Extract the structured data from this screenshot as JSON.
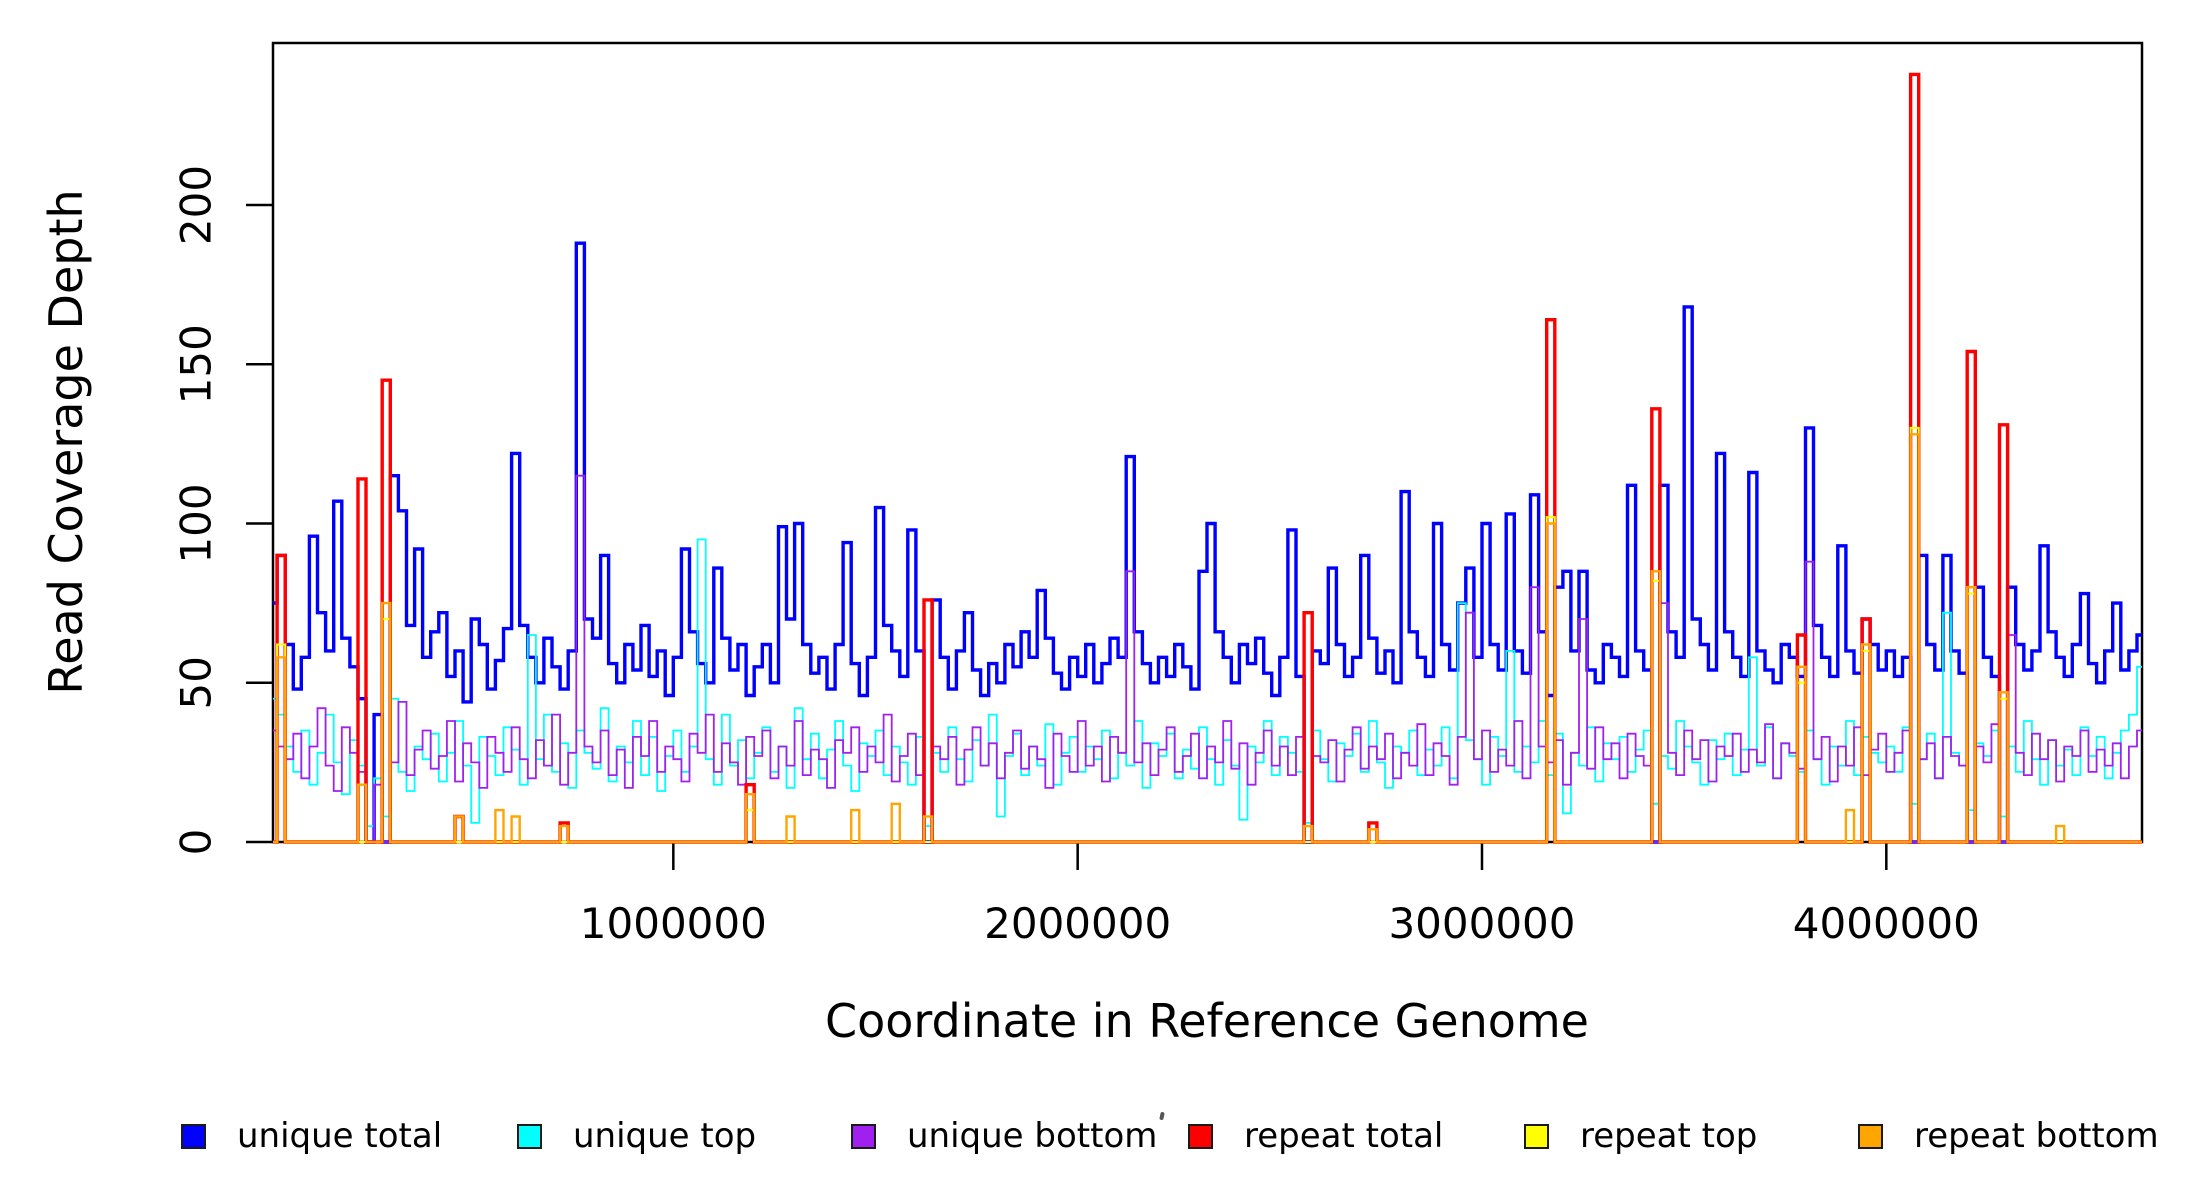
{
  "figure": {
    "background": "#FFFFFF",
    "x_axis": {
      "label": "Coordinate in Reference Genome",
      "ticks": [
        {
          "value": 1000000,
          "label": "1000000"
        },
        {
          "value": 2000000,
          "label": "2000000"
        },
        {
          "value": 3000000,
          "label": "3000000"
        },
        {
          "value": 4000000,
          "label": "4000000"
        }
      ]
    },
    "y_axis": {
      "label": "Read Coverage Depth",
      "ticks": [
        {
          "value": 0,
          "label": "0"
        },
        {
          "value": 50,
          "label": "50"
        },
        {
          "value": 100,
          "label": "100"
        },
        {
          "value": 150,
          "label": "150"
        },
        {
          "value": 200,
          "label": "200"
        }
      ]
    }
  },
  "legend": {
    "items": [
      {
        "label": "unique total",
        "color": "#0000FF"
      },
      {
        "label": "unique top",
        "color": "#00FFFF"
      },
      {
        "label": "unique bottom",
        "color": "#A020F0"
      },
      {
        "label": "repeat total",
        "color": "#FF0000"
      },
      {
        "label": "repeat top",
        "color": "#FFFF00"
      },
      {
        "label": "repeat bottom",
        "color": "#FFA500"
      }
    ]
  },
  "chart_data": {
    "type": "line",
    "step_mode": "step-after",
    "title": "",
    "xlabel": "Coordinate in Reference Genome",
    "ylabel": "Read Coverage Depth",
    "x_start": 0,
    "x_step": 20000,
    "n_points": 232,
    "xlim": [
      0,
      4640000
    ],
    "ylim": [
      0,
      245
    ],
    "grid": false,
    "legend_position": "bottom",
    "series": [
      {
        "name": "unique total",
        "color": "#0000FF",
        "line_width": 3.4,
        "values": [
          75,
          90,
          62,
          48,
          58,
          96,
          72,
          60,
          107,
          64,
          55,
          45,
          0,
          40,
          0,
          115,
          104,
          68,
          92,
          58,
          66,
          72,
          52,
          60,
          44,
          70,
          62,
          48,
          57,
          67,
          122,
          68,
          58,
          50,
          64,
          55,
          48,
          60,
          188,
          70,
          64,
          90,
          56,
          50,
          62,
          54,
          68,
          52,
          60,
          46,
          58,
          92,
          66,
          56,
          50,
          86,
          64,
          54,
          62,
          46,
          55,
          62,
          50,
          99,
          70,
          100,
          62,
          53,
          58,
          48,
          62,
          94,
          56,
          46,
          58,
          105,
          68,
          60,
          52,
          98,
          60,
          0,
          76,
          58,
          48,
          60,
          72,
          54,
          46,
          56,
          50,
          62,
          55,
          66,
          58,
          79,
          64,
          53,
          48,
          58,
          52,
          62,
          50,
          56,
          64,
          58,
          121,
          66,
          56,
          50,
          58,
          52,
          62,
          55,
          48,
          85,
          100,
          66,
          58,
          50,
          62,
          56,
          64,
          53,
          46,
          58,
          98,
          52,
          0,
          60,
          56,
          86,
          62,
          52,
          58,
          90,
          64,
          53,
          60,
          50,
          110,
          66,
          58,
          52,
          100,
          62,
          54,
          75,
          86,
          58,
          100,
          62,
          54,
          103,
          60,
          53,
          109,
          66,
          46,
          80,
          85,
          60,
          85,
          54,
          50,
          62,
          58,
          52,
          112,
          60,
          54,
          0,
          112,
          66,
          58,
          168,
          70,
          62,
          54,
          122,
          66,
          58,
          52,
          116,
          60,
          54,
          50,
          62,
          58,
          52,
          130,
          68,
          58,
          52,
          93,
          60,
          53,
          70,
          62,
          54,
          60,
          52,
          58,
          0,
          90,
          62,
          54,
          90,
          60,
          53,
          0,
          80,
          58,
          52,
          0,
          80,
          62,
          54,
          60,
          93,
          66,
          58,
          52,
          62,
          78,
          56,
          50,
          60,
          75,
          54,
          60,
          65
        ]
      },
      {
        "name": "unique top",
        "color": "#00FFFF",
        "line_width": 1.8,
        "values": [
          45,
          40,
          30,
          22,
          35,
          18,
          28,
          40,
          25,
          15,
          32,
          24,
          5,
          20,
          8,
          45,
          22,
          16,
          30,
          26,
          34,
          19,
          28,
          38,
          24,
          6,
          33,
          27,
          21,
          36,
          29,
          18,
          65,
          26,
          40,
          22,
          31,
          17,
          35,
          28,
          23,
          42,
          19,
          30,
          25,
          38,
          21,
          33,
          16,
          27,
          35,
          22,
          30,
          95,
          26,
          18,
          40,
          24,
          32,
          20,
          28,
          36,
          22,
          30,
          17,
          42,
          26,
          34,
          20,
          29,
          38,
          24,
          16,
          31,
          27,
          35,
          21,
          30,
          25,
          18,
          33,
          5,
          28,
          22,
          36,
          26,
          19,
          32,
          24,
          40,
          8,
          27,
          34,
          21,
          30,
          24,
          37,
          18,
          28,
          33,
          22,
          30,
          26,
          35,
          20,
          28,
          24,
          38,
          17,
          31,
          27,
          34,
          20,
          29,
          23,
          36,
          26,
          18,
          32,
          24,
          7,
          30,
          25,
          38,
          21,
          33,
          28,
          22,
          6,
          35,
          26,
          19,
          31,
          27,
          34,
          22,
          38,
          25,
          17,
          30,
          28,
          35,
          21,
          29,
          24,
          36,
          20,
          75,
          32,
          26,
          18,
          33,
          27,
          60,
          22,
          30,
          25,
          38,
          21,
          34,
          9,
          28,
          24,
          36,
          19,
          31,
          26,
          33,
          22,
          29,
          35,
          12,
          27,
          23,
          38,
          30,
          25,
          18,
          32,
          26,
          34,
          21,
          29,
          58,
          24,
          36,
          20,
          31,
          27,
          22,
          35,
          26,
          18,
          30,
          24,
          38,
          21,
          33,
          28,
          25,
          30,
          22,
          36,
          12,
          26,
          34,
          20,
          72,
          28,
          24,
          10,
          31,
          27,
          35,
          8,
          30,
          22,
          38,
          26,
          18,
          32,
          24,
          29,
          21,
          36,
          27,
          33,
          20,
          28,
          35,
          40,
          55
        ]
      },
      {
        "name": "unique bottom",
        "color": "#A020F0",
        "line_width": 1.8,
        "values": [
          35,
          30,
          26,
          34,
          20,
          30,
          42,
          24,
          16,
          36,
          28,
          22,
          0,
          18,
          0,
          25,
          44,
          21,
          29,
          35,
          23,
          27,
          38,
          19,
          31,
          25,
          17,
          33,
          28,
          22,
          36,
          26,
          20,
          32,
          24,
          40,
          18,
          28,
          115,
          30,
          25,
          35,
          21,
          29,
          17,
          33,
          27,
          38,
          22,
          30,
          26,
          19,
          34,
          28,
          40,
          22,
          31,
          25,
          18,
          33,
          27,
          35,
          20,
          30,
          24,
          38,
          21,
          29,
          26,
          17,
          32,
          28,
          36,
          22,
          30,
          25,
          40,
          19,
          27,
          34,
          21,
          0,
          30,
          26,
          33,
          18,
          29,
          36,
          24,
          31,
          20,
          28,
          35,
          23,
          30,
          26,
          17,
          34,
          27,
          22,
          38,
          24,
          30,
          19,
          33,
          28,
          85,
          25,
          31,
          21,
          29,
          36,
          22,
          27,
          34,
          20,
          30,
          25,
          38,
          23,
          31,
          18,
          28,
          35,
          24,
          30,
          21,
          33,
          0,
          27,
          25,
          32,
          19,
          29,
          36,
          23,
          30,
          26,
          34,
          20,
          28,
          24,
          37,
          21,
          31,
          27,
          18,
          33,
          72,
          26,
          35,
          22,
          29,
          24,
          38,
          20,
          80,
          30,
          25,
          32,
          18,
          28,
          70,
          23,
          36,
          26,
          31,
          20,
          34,
          27,
          24,
          0,
          75,
          28,
          21,
          35,
          26,
          32,
          19,
          30,
          27,
          34,
          22,
          29,
          25,
          37,
          20,
          31,
          28,
          23,
          88,
          26,
          33,
          19,
          30,
          24,
          36,
          21,
          29,
          34,
          22,
          28,
          35,
          0,
          26,
          31,
          20,
          33,
          27,
          24,
          0,
          30,
          25,
          37,
          0,
          65,
          28,
          21,
          34,
          26,
          32,
          19,
          30,
          27,
          35,
          22,
          29,
          24,
          31,
          20,
          30,
          35
        ]
      },
      {
        "name": "repeat total",
        "color": "#FF0000",
        "line_width": 3.4,
        "baseline_value": 0,
        "spikes": {
          "1": 90,
          "11": 114,
          "14": 145,
          "23": 8,
          "36": 6,
          "59": 18,
          "81": 76,
          "128": 72,
          "136": 6,
          "158": 164,
          "171": 136,
          "189": 65,
          "197": 70,
          "203": 241,
          "210": 154,
          "214": 131
        }
      },
      {
        "name": "repeat top",
        "color": "#FFFF00",
        "line_width": 2.0,
        "baseline_value": 0,
        "spikes": {
          "1": 62,
          "14": 70,
          "59": 10,
          "158": 102,
          "171": 82,
          "189": 50,
          "197": 60,
          "203": 130,
          "210": 78,
          "214": 45
        }
      },
      {
        "name": "repeat bottom",
        "color": "#FFA500",
        "line_width": 2.4,
        "baseline_value": 0,
        "spikes": {
          "1": 58,
          "11": 18,
          "14": 75,
          "23": 8,
          "28": 10,
          "30": 8,
          "36": 5,
          "59": 15,
          "64": 8,
          "72": 10,
          "77": 12,
          "81": 8,
          "128": 5,
          "136": 4,
          "158": 100,
          "171": 85,
          "189": 55,
          "195": 10,
          "197": 62,
          "203": 128,
          "210": 80,
          "214": 47,
          "221": 5
        }
      }
    ]
  }
}
